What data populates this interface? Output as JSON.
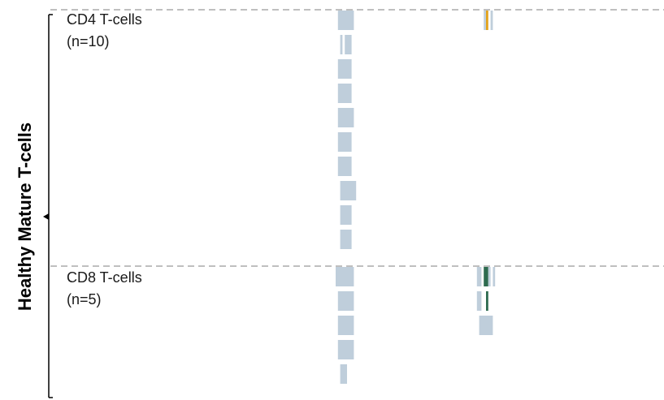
{
  "chart_data": {
    "type": "bar",
    "ylabel": "Healthy Mature T-cells",
    "colors": {
      "block": "#bfcedb",
      "dashed_line": "#7f7f7f",
      "bracket": "#000000",
      "highlight_orange": "#e3a21a",
      "highlight_green": "#2e6b4f"
    },
    "groups": [
      {
        "label": "CD4 T-cells",
        "count": "(n=10)",
        "rows": [
          {
            "a": [
              [
                1,
                8
              ]
            ],
            "b": [
              [
                4,
                5
              ],
              [
                5,
                6,
                "orange"
              ],
              [
                7,
                8
              ]
            ]
          },
          {
            "a": [
              [
                2,
                3
              ],
              [
                4,
                7
              ]
            ],
            "b": []
          },
          {
            "a": [
              [
                1,
                7
              ]
            ],
            "b": []
          },
          {
            "a": [
              [
                1,
                7
              ]
            ],
            "b": []
          },
          {
            "a": [
              [
                1,
                8
              ]
            ],
            "b": []
          },
          {
            "a": [
              [
                1,
                7
              ]
            ],
            "b": []
          },
          {
            "a": [
              [
                1,
                7
              ]
            ],
            "b": []
          },
          {
            "a": [
              [
                2,
                9
              ]
            ],
            "b": []
          },
          {
            "a": [
              [
                2,
                7
              ]
            ],
            "b": []
          },
          {
            "a": [
              [
                2,
                7
              ]
            ],
            "b": []
          }
        ]
      },
      {
        "label": "CD8 T-cells",
        "count": "(n=5)",
        "rows": [
          {
            "a": [
              [
                0,
                8
              ]
            ],
            "b": [
              [
                1,
                3
              ],
              [
                4,
                5,
                "green"
              ],
              [
                5,
                6,
                "green"
              ],
              [
                6,
                7
              ],
              [
                8,
                9
              ]
            ]
          },
          {
            "a": [
              [
                1,
                8
              ]
            ],
            "b": [
              [
                1,
                3
              ],
              [
                5,
                6,
                "green"
              ]
            ]
          },
          {
            "a": [
              [
                1,
                8
              ]
            ],
            "b": [
              [
                2,
                8
              ]
            ]
          },
          {
            "a": [
              [
                1,
                8
              ]
            ],
            "b": []
          },
          {
            "a": [
              [
                2,
                5
              ]
            ],
            "b": []
          }
        ]
      }
    ]
  }
}
